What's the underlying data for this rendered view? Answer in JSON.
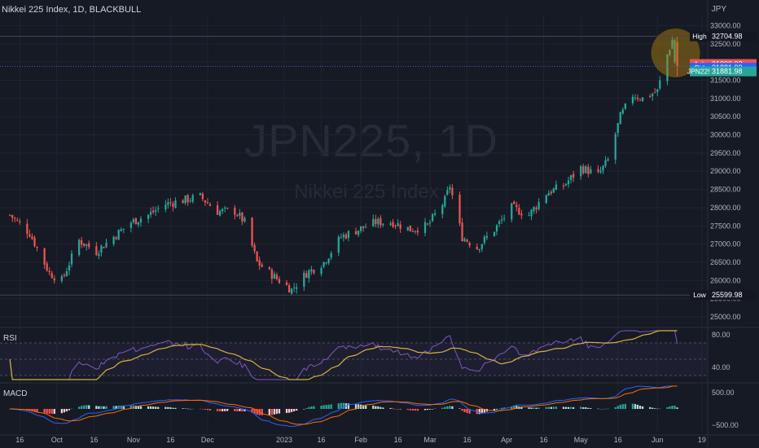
{
  "header": {
    "symbol_line": "Nikkei 225 Index, 1D, BLACKBULL",
    "currency": "JPY"
  },
  "watermark": {
    "symbol": "JPN225, 1D",
    "name": "Nikkei 225 Index"
  },
  "colors": {
    "up": "#26a69a",
    "down": "#ef5350",
    "rsi_line": "#7e57c2",
    "rsi_ma": "#d4b23c",
    "macd_line": "#2962ff",
    "signal_line": "#ff6d00",
    "highlight": "#b8860b"
  },
  "labels": {
    "high": {
      "text": "High",
      "value": "32704.98"
    },
    "ask": {
      "text": "Ask",
      "value": "31890.02"
    },
    "bid": {
      "text": "Bid",
      "value": "31881.98"
    },
    "symbol": {
      "text": "JPN225",
      "value": "31881.98"
    },
    "low": {
      "text": "Low",
      "value": "25599.98"
    }
  },
  "panes": {
    "rsi_label": "RSI",
    "macd_label": "MACD"
  },
  "chart_data": [
    {
      "type": "candlestick",
      "ylim": [
        24800,
        33300
      ],
      "yticks": [
        "33000.00",
        "32500.00",
        "32000.00",
        "31500.00",
        "31000.00",
        "30500.00",
        "30000.00",
        "29500.00",
        "29000.00",
        "28500.00",
        "28000.00",
        "27500.00",
        "27000.00",
        "26500.00",
        "26000.00",
        "25500.00",
        "25000.00"
      ],
      "xticks": [
        "16",
        "Oct",
        "16",
        "Nov",
        "16",
        "Dec",
        "2023",
        "16",
        "Feb",
        "16",
        "Mar",
        "16",
        "Apr",
        "16",
        "May",
        "16",
        "Jun",
        "19"
      ],
      "high_value": 32704.98,
      "low_value": 25599.98,
      "last_price": 31881.98,
      "close_path": [
        {
          "date": "2022-09-12",
          "close": 27800
        },
        {
          "date": "2022-09-20",
          "close": 27300
        },
        {
          "date": "2022-09-28",
          "close": 26200
        },
        {
          "date": "2022-10-03",
          "close": 26000
        },
        {
          "date": "2022-10-10",
          "close": 27100
        },
        {
          "date": "2022-10-17",
          "close": 26800
        },
        {
          "date": "2022-10-24",
          "close": 27200
        },
        {
          "date": "2022-10-31",
          "close": 27600
        },
        {
          "date": "2022-11-07",
          "close": 27800
        },
        {
          "date": "2022-11-14",
          "close": 28100
        },
        {
          "date": "2022-11-21",
          "close": 28200
        },
        {
          "date": "2022-11-28",
          "close": 28300
        },
        {
          "date": "2022-12-05",
          "close": 27900
        },
        {
          "date": "2022-12-12",
          "close": 27900
        },
        {
          "date": "2022-12-16",
          "close": 27600
        },
        {
          "date": "2022-12-21",
          "close": 26500
        },
        {
          "date": "2022-12-28",
          "close": 26100
        },
        {
          "date": "2023-01-04",
          "close": 25750
        },
        {
          "date": "2023-01-10",
          "close": 26200
        },
        {
          "date": "2023-01-17",
          "close": 26500
        },
        {
          "date": "2023-01-24",
          "close": 27200
        },
        {
          "date": "2023-01-31",
          "close": 27400
        },
        {
          "date": "2023-02-07",
          "close": 27600
        },
        {
          "date": "2023-02-14",
          "close": 27600
        },
        {
          "date": "2023-02-21",
          "close": 27400
        },
        {
          "date": "2023-02-28",
          "close": 27500
        },
        {
          "date": "2023-03-07",
          "close": 28200
        },
        {
          "date": "2023-03-09",
          "close": 28600
        },
        {
          "date": "2023-03-14",
          "close": 27200
        },
        {
          "date": "2023-03-20",
          "close": 26900
        },
        {
          "date": "2023-03-27",
          "close": 27400
        },
        {
          "date": "2023-04-03",
          "close": 28000
        },
        {
          "date": "2023-04-10",
          "close": 27800
        },
        {
          "date": "2023-04-17",
          "close": 28400
        },
        {
          "date": "2023-04-24",
          "close": 28600
        },
        {
          "date": "2023-05-01",
          "close": 29100
        },
        {
          "date": "2023-05-08",
          "close": 28900
        },
        {
          "date": "2023-05-12",
          "close": 29300
        },
        {
          "date": "2023-05-17",
          "close": 30500
        },
        {
          "date": "2023-05-22",
          "close": 31100
        },
        {
          "date": "2023-05-26",
          "close": 31000
        },
        {
          "date": "2023-06-01",
          "close": 31200
        },
        {
          "date": "2023-06-05",
          "close": 32200
        },
        {
          "date": "2023-06-07",
          "close": 32600
        },
        {
          "date": "2023-06-09",
          "close": 31880
        }
      ]
    },
    {
      "type": "line",
      "name": "RSI",
      "ylim": [
        25,
        85
      ],
      "yticks": [
        "80.00",
        "40.00"
      ],
      "guides": [
        70,
        50,
        30
      ]
    },
    {
      "type": "bar",
      "name": "MACD",
      "ylim": [
        -700,
        700
      ],
      "yticks": [
        "500.00",
        "−500.00"
      ]
    }
  ]
}
